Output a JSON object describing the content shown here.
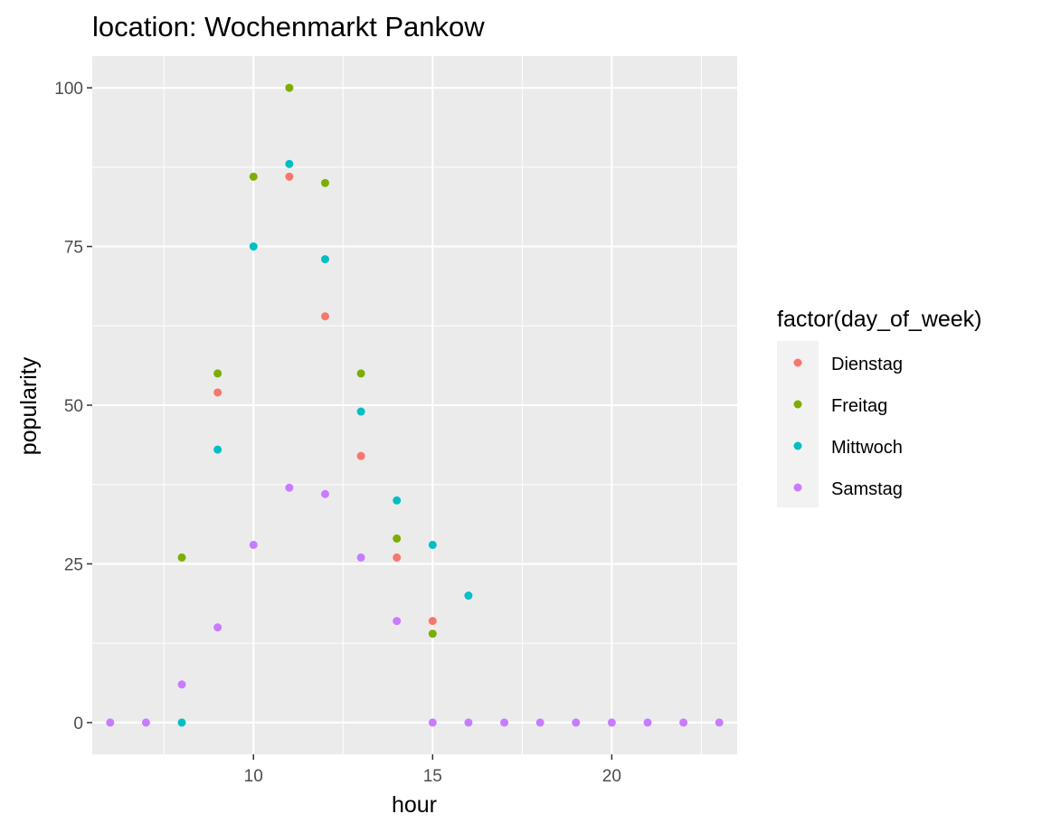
{
  "chart_data": {
    "type": "scatter",
    "title": "location: Wochenmarkt Pankow",
    "xlabel": "hour",
    "ylabel": "popularity",
    "xlim": [
      5.5,
      23.5
    ],
    "ylim": [
      -5,
      105
    ],
    "x_ticks": [
      10,
      15,
      20
    ],
    "y_ticks": [
      0,
      25,
      50,
      75,
      100
    ],
    "grid": true,
    "legend_title": "factor(day_of_week)",
    "legend_position": "right",
    "series": [
      {
        "name": "Dienstag",
        "color": "#F8766D",
        "points": [
          [
            9,
            52
          ],
          [
            11,
            86
          ],
          [
            12,
            64
          ],
          [
            13,
            42
          ],
          [
            14,
            26
          ],
          [
            15,
            16
          ]
        ]
      },
      {
        "name": "Freitag",
        "color": "#7CAE00",
        "points": [
          [
            8,
            26
          ],
          [
            9,
            55
          ],
          [
            10,
            86
          ],
          [
            11,
            100
          ],
          [
            12,
            85
          ],
          [
            13,
            55
          ],
          [
            14,
            29
          ],
          [
            15,
            14
          ]
        ]
      },
      {
        "name": "Mittwoch",
        "color": "#00BFC4",
        "points": [
          [
            8,
            0
          ],
          [
            9,
            43
          ],
          [
            10,
            75
          ],
          [
            11,
            88
          ],
          [
            12,
            73
          ],
          [
            13,
            49
          ],
          [
            14,
            35
          ],
          [
            15,
            28
          ],
          [
            16,
            20
          ]
        ]
      },
      {
        "name": "Samstag",
        "color": "#C77CFF",
        "points": [
          [
            6,
            0
          ],
          [
            7,
            0
          ],
          [
            8,
            6
          ],
          [
            9,
            15
          ],
          [
            10,
            28
          ],
          [
            11,
            37
          ],
          [
            12,
            36
          ],
          [
            13,
            26
          ],
          [
            14,
            16
          ],
          [
            15,
            0
          ],
          [
            16,
            0
          ],
          [
            17,
            0
          ],
          [
            18,
            0
          ],
          [
            19,
            0
          ],
          [
            20,
            0
          ],
          [
            21,
            0
          ],
          [
            22,
            0
          ],
          [
            23,
            0
          ]
        ]
      }
    ]
  }
}
